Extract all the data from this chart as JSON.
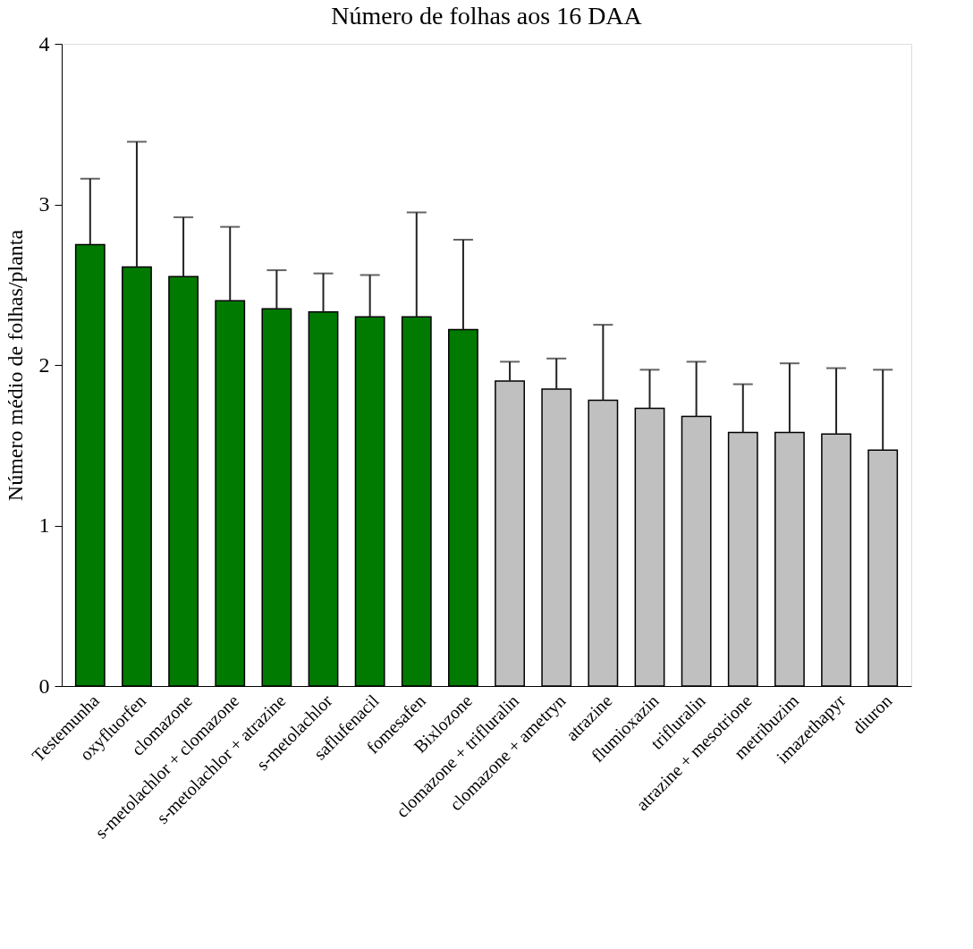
{
  "chart_data": {
    "type": "bar",
    "title": "Número de folhas aos 16 DAA",
    "ylabel": "Número médio de folhas/planta",
    "categories": [
      "Testemunha",
      "oxyfluorfen",
      "clomazone",
      "s-metolachlor + clomazone",
      "s-metolachlor + atrazine",
      "s-metolachlor",
      "saflufenacil",
      "fomesafen",
      "Bixlozone",
      "clomazone + trifluralin",
      "clomazone + ametryn",
      "atrazine",
      "flumioxazin",
      "trifluralin",
      "atrazine + mesotrione",
      "metribuzim",
      "imazethapyr",
      "diuron"
    ],
    "values": [
      2.75,
      2.61,
      2.55,
      2.4,
      2.35,
      2.33,
      2.3,
      2.3,
      2.22,
      1.9,
      1.85,
      1.78,
      1.73,
      1.68,
      1.58,
      1.58,
      1.57,
      1.47
    ],
    "errors": [
      [
        2.75,
        3.16
      ],
      [
        2.61,
        3.39
      ],
      [
        2.55,
        2.92
      ],
      [
        2.4,
        2.86
      ],
      [
        2.35,
        2.59
      ],
      [
        2.33,
        2.57
      ],
      [
        2.3,
        2.56
      ],
      [
        2.3,
        2.95
      ],
      [
        2.22,
        2.78
      ],
      [
        1.9,
        2.02
      ],
      [
        1.85,
        2.04
      ],
      [
        1.78,
        2.25
      ],
      [
        1.73,
        1.97
      ],
      [
        1.68,
        2.02
      ],
      [
        1.58,
        1.88
      ],
      [
        1.58,
        2.01
      ],
      [
        1.57,
        1.98
      ],
      [
        1.47,
        1.97
      ]
    ],
    "colors": [
      "#007a00",
      "#007a00",
      "#007a00",
      "#007a00",
      "#007a00",
      "#007a00",
      "#007a00",
      "#007a00",
      "#007a00",
      "#c0c0c0",
      "#c0c0c0",
      "#c0c0c0",
      "#c0c0c0",
      "#c0c0c0",
      "#c0c0c0",
      "#c0c0c0",
      "#c0c0c0",
      "#c0c0c0"
    ],
    "ylim": [
      0,
      4
    ],
    "yticks": [
      0,
      1,
      2,
      3,
      4
    ],
    "grid": false
  }
}
